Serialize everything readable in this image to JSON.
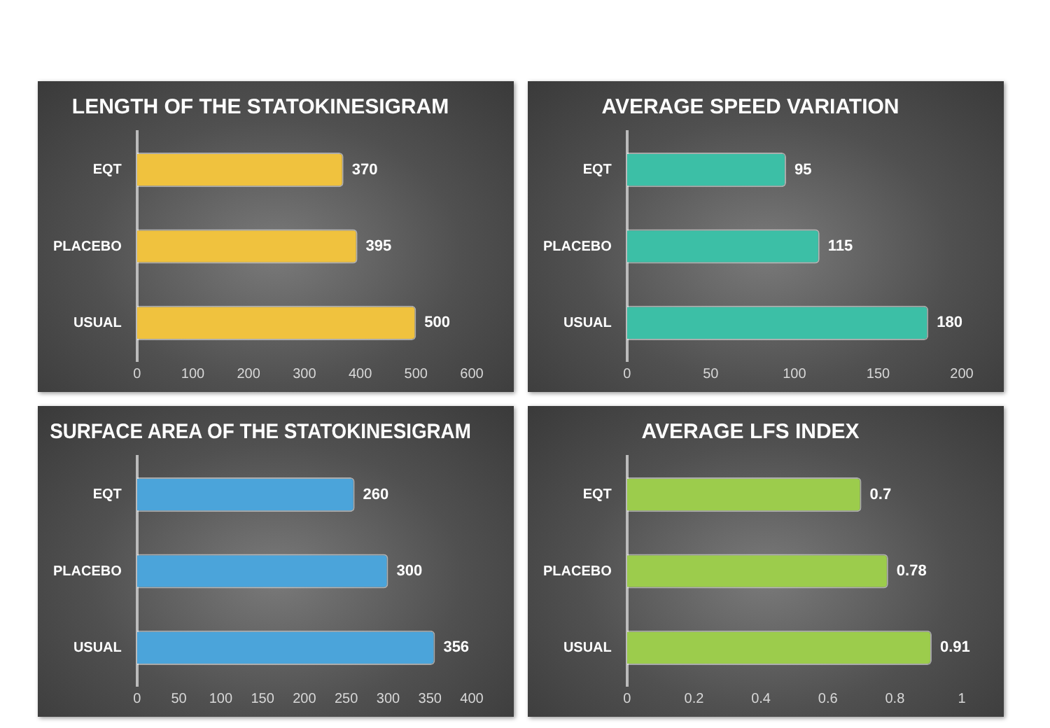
{
  "chart_data": [
    {
      "type": "bar",
      "orientation": "horizontal",
      "title": "LENGTH OF THE STATOKINESIGRAM",
      "categories": [
        "EQT",
        "PLACEBO",
        "USUAL"
      ],
      "values": [
        370,
        395,
        500
      ],
      "color": "#f0c23e",
      "xlim": [
        0,
        600
      ],
      "xticks": [
        0,
        100,
        200,
        300,
        400,
        500,
        600
      ],
      "data_labels": true,
      "grid": false,
      "legend": false
    },
    {
      "type": "bar",
      "orientation": "horizontal",
      "title": "AVERAGE SPEED VARIATION",
      "categories": [
        "EQT",
        "PLACEBO",
        "USUAL"
      ],
      "values": [
        95,
        115,
        180
      ],
      "color": "#3cbfa6",
      "xlim": [
        0,
        200
      ],
      "xticks": [
        0,
        50,
        100,
        150,
        200
      ],
      "data_labels": true,
      "grid": false,
      "legend": false
    },
    {
      "type": "bar",
      "orientation": "horizontal",
      "title": "SURFACE AREA OF THE STATOKINESIGRAM",
      "categories": [
        "EQT",
        "PLACEBO",
        "USUAL"
      ],
      "values": [
        260,
        300,
        356
      ],
      "color": "#4ba4da",
      "xlim": [
        0,
        400
      ],
      "xticks": [
        0,
        50,
        100,
        150,
        200,
        250,
        300,
        350,
        400
      ],
      "data_labels": true,
      "grid": false,
      "legend": false
    },
    {
      "type": "bar",
      "orientation": "horizontal",
      "title": "AVERAGE LFS INDEX",
      "categories": [
        "EQT",
        "PLACEBO",
        "USUAL"
      ],
      "values": [
        0.7,
        0.78,
        0.91
      ],
      "color": "#9ccc4c",
      "xlim": [
        0,
        1
      ],
      "xticks": [
        0,
        0.2,
        0.4,
        0.6,
        0.8,
        1
      ],
      "data_labels": true,
      "grid": false,
      "legend": false
    }
  ]
}
